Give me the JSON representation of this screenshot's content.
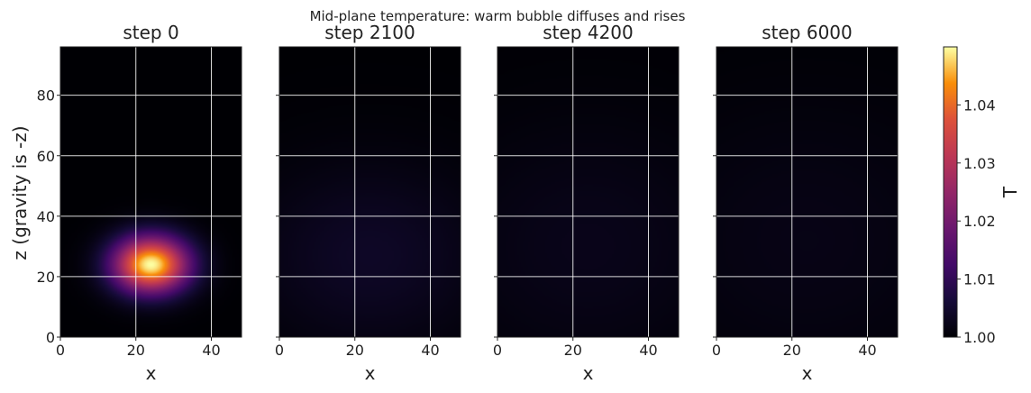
{
  "chart_data": {
    "type": "heatmap",
    "title": "Mid-plane temperature: warm bubble diffuses and rises",
    "colormap": "inferno",
    "grid": true,
    "xlim": [
      0,
      48
    ],
    "ylim": [
      0,
      96
    ],
    "xlabel": "x",
    "ylabel": "z (gravity is -z)",
    "x_ticks": [
      "0",
      "20",
      "40"
    ],
    "y_ticks": [
      "0",
      "20",
      "40",
      "60",
      "80"
    ],
    "colorbar": {
      "label": "T",
      "min": 1.0,
      "max": 1.05,
      "ticks": [
        "1.00",
        "1.01",
        "1.02",
        "1.03",
        "1.04"
      ]
    },
    "panels": [
      {
        "title": "step 0",
        "center": [
          24,
          24
        ],
        "sigma_x": 7,
        "sigma_z": 6.5,
        "amplitude": 0.05
      },
      {
        "title": "step 2100",
        "center": [
          24,
          27
        ],
        "sigma_x": 22,
        "sigma_z": 22,
        "amplitude": 0.004
      },
      {
        "title": "step 4200",
        "center": [
          24,
          30
        ],
        "sigma_x": 28,
        "sigma_z": 30,
        "amplitude": 0.0025
      },
      {
        "title": "step 6000",
        "center": [
          24,
          32
        ],
        "sigma_x": 32,
        "sigma_z": 34,
        "amplitude": 0.002
      }
    ]
  }
}
